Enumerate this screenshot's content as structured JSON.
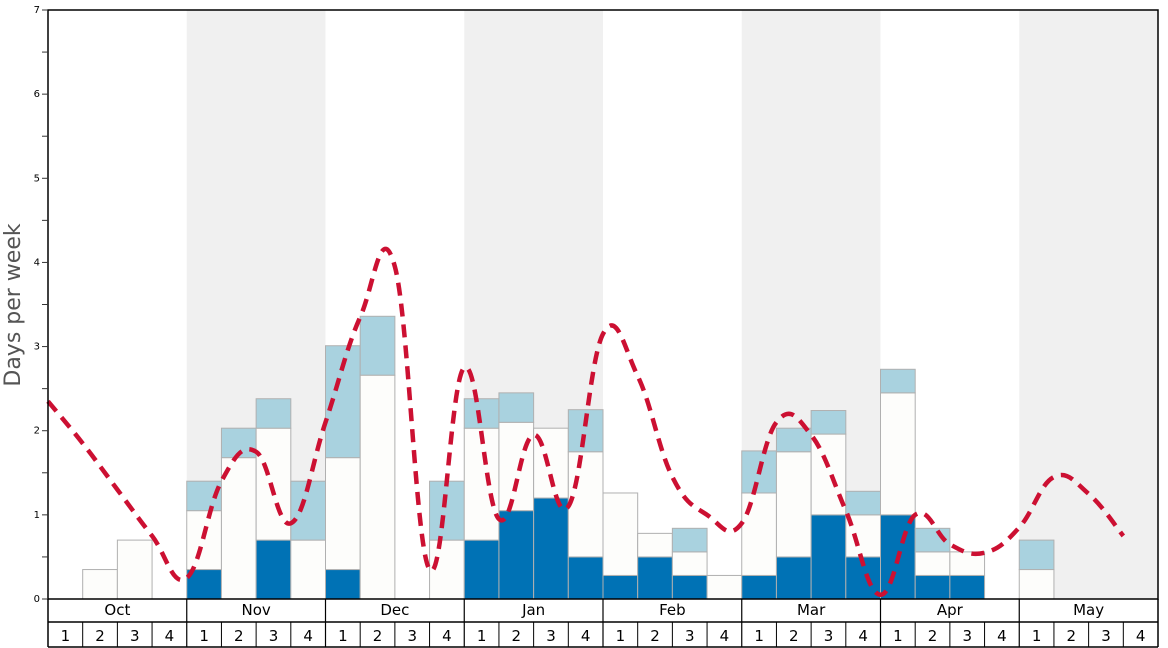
{
  "chart_data": {
    "type": "bar",
    "title": "",
    "ylabel": "Days per week",
    "ylim": [
      0,
      7
    ],
    "yticks": [
      "0",
      "1",
      "2",
      "3",
      "4",
      "5",
      "6",
      "7"
    ],
    "months": [
      "Oct",
      "Nov",
      "Dec",
      "Jan",
      "Feb",
      "Mar",
      "Apr",
      "May"
    ],
    "week_labels": [
      "1",
      "2",
      "3",
      "4"
    ],
    "colors": {
      "dark": "#0072b5",
      "white": "#fdfdfb",
      "light": "#a9d2df",
      "line": "#cc1032",
      "band": "#f0f0f0",
      "bar_stroke": "#b0b0b0"
    },
    "series": [
      {
        "values": [
          0,
          0,
          0,
          0,
          0.35,
          0,
          0.7,
          0,
          0.35,
          0,
          0,
          0,
          0.7,
          1.05,
          1.2,
          0.5,
          0.28,
          0.5,
          0.28,
          0,
          0.28,
          0.5,
          1.0,
          0.5,
          1.0,
          0.28,
          0.28,
          0,
          0,
          0,
          0,
          0
        ]
      },
      {
        "values": [
          0,
          0.35,
          0.7,
          0,
          0.7,
          1.68,
          1.33,
          0.7,
          1.33,
          2.66,
          0,
          0.7,
          1.33,
          1.05,
          0.83,
          1.25,
          0.98,
          0.28,
          0.28,
          0.28,
          0.98,
          1.25,
          0.96,
          0.5,
          1.45,
          0.28,
          0.28,
          0,
          0.35,
          0,
          0,
          0
        ]
      },
      {
        "values": [
          0,
          0,
          0,
          0,
          0.35,
          0.35,
          0.35,
          0.7,
          1.33,
          0.7,
          0,
          0.7,
          0.35,
          0.35,
          0,
          0.5,
          0,
          0,
          0.28,
          0,
          0.5,
          0.28,
          0.28,
          0.28,
          0.28,
          0.28,
          0,
          0,
          0.35,
          0,
          0,
          0
        ]
      },
      {
        "values": [
          2.35,
          1.85,
          1.3,
          0.75,
          0.25,
          1.4,
          1.75,
          0.9,
          2.1,
          3.35,
          3.95,
          0.35,
          2.75,
          0.95,
          1.95,
          1.1,
          3.15,
          2.65,
          1.45,
          1.0,
          0.9,
          2.1,
          1.95,
          1.05,
          0.05,
          1.0,
          0.65,
          0.55,
          0.85,
          1.45,
          1.25,
          0.75
        ]
      }
    ]
  }
}
